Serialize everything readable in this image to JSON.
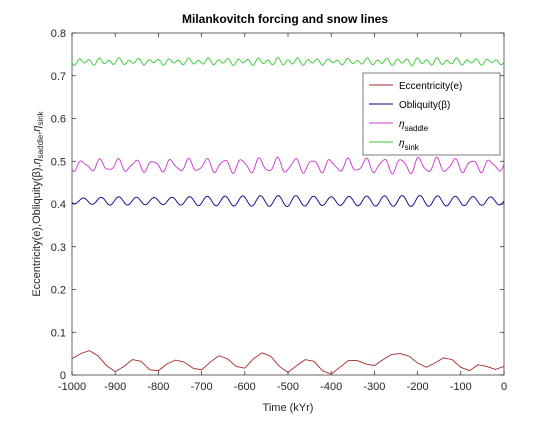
{
  "chart_data": {
    "type": "line",
    "title": "Milankovitch forcing and snow lines",
    "xlabel": "Time (kYr)",
    "ylabel": "Eccentricity(e),Obliquity(β),ηsaddle,ηsink",
    "xlim": [
      -1000,
      0
    ],
    "ylim": [
      0,
      0.8
    ],
    "xticks": [
      -1000,
      -900,
      -800,
      -700,
      -600,
      -500,
      -400,
      -300,
      -200,
      -100,
      0
    ],
    "yticks": [
      0,
      0.1,
      0.2,
      0.3,
      0.4,
      0.5,
      0.6,
      0.7,
      0.8
    ],
    "legend_position": "top-right",
    "grid": false,
    "series": [
      {
        "name": "Eccentricity(e)",
        "color": "#a52a2a",
        "x": [
          -1000,
          -980,
          -960,
          -940,
          -920,
          -900,
          -880,
          -860,
          -840,
          -820,
          -800,
          -780,
          -760,
          -740,
          -720,
          -700,
          -680,
          -660,
          -640,
          -620,
          -600,
          -580,
          -560,
          -540,
          -520,
          -500,
          -480,
          -460,
          -440,
          -420,
          -400,
          -380,
          -360,
          -340,
          -320,
          -300,
          -280,
          -260,
          -240,
          -220,
          -200,
          -180,
          -160,
          -140,
          -120,
          -100,
          -80,
          -60,
          -40,
          -20,
          0
        ],
        "y": [
          0.038,
          0.05,
          0.057,
          0.045,
          0.022,
          0.008,
          0.02,
          0.036,
          0.032,
          0.012,
          0.01,
          0.026,
          0.035,
          0.03,
          0.016,
          0.012,
          0.03,
          0.045,
          0.038,
          0.02,
          0.016,
          0.038,
          0.052,
          0.044,
          0.02,
          0.006,
          0.022,
          0.036,
          0.032,
          0.01,
          0.002,
          0.018,
          0.034,
          0.034,
          0.026,
          0.022,
          0.036,
          0.048,
          0.05,
          0.044,
          0.028,
          0.018,
          0.028,
          0.04,
          0.036,
          0.018,
          0.01,
          0.024,
          0.02,
          0.013,
          0.02
        ]
      },
      {
        "name": "Obliquity(β)",
        "color": "#00008b",
        "function": "0.407 + A*sin(2*pi*t/41)",
        "x_step": 2,
        "amplitude_points": [
          [
            -1000,
            0.006
          ],
          [
            -900,
            0.01
          ],
          [
            -800,
            0.008
          ],
          [
            -700,
            0.011
          ],
          [
            -600,
            0.012
          ],
          [
            -500,
            0.013
          ],
          [
            -400,
            0.01
          ],
          [
            -300,
            0.012
          ],
          [
            -200,
            0.013
          ],
          [
            -100,
            0.011
          ],
          [
            0,
            0.009
          ]
        ]
      },
      {
        "name": "ηsaddle",
        "color": "#cc33cc",
        "function": "0.49 + A*sin(2*pi*t/41 + 0.3) + 0.004*sin(2*pi*t/23)",
        "x_step": 2,
        "amplitude_points": [
          [
            -1000,
            0.01
          ],
          [
            -900,
            0.013
          ],
          [
            -800,
            0.012
          ],
          [
            -700,
            0.014
          ],
          [
            -600,
            0.015
          ],
          [
            -500,
            0.016
          ],
          [
            -400,
            0.013
          ],
          [
            -300,
            0.015
          ],
          [
            -200,
            0.017
          ],
          [
            -100,
            0.014
          ],
          [
            0,
            0.012
          ]
        ]
      },
      {
        "name": "ηsink",
        "color": "#33cc33",
        "function": "0.733 + A*sin(2*pi*t/23) + 0.003*sin(2*pi*t/41)",
        "x_step": 2,
        "amplitude_points": [
          [
            -1000,
            0.006
          ],
          [
            -900,
            0.006
          ],
          [
            -800,
            0.005
          ],
          [
            -700,
            0.006
          ],
          [
            -600,
            0.006
          ],
          [
            -500,
            0.007
          ],
          [
            -400,
            0.005
          ],
          [
            -300,
            0.006
          ],
          [
            -200,
            0.007
          ],
          [
            -100,
            0.006
          ],
          [
            0,
            0.005
          ]
        ]
      }
    ]
  }
}
